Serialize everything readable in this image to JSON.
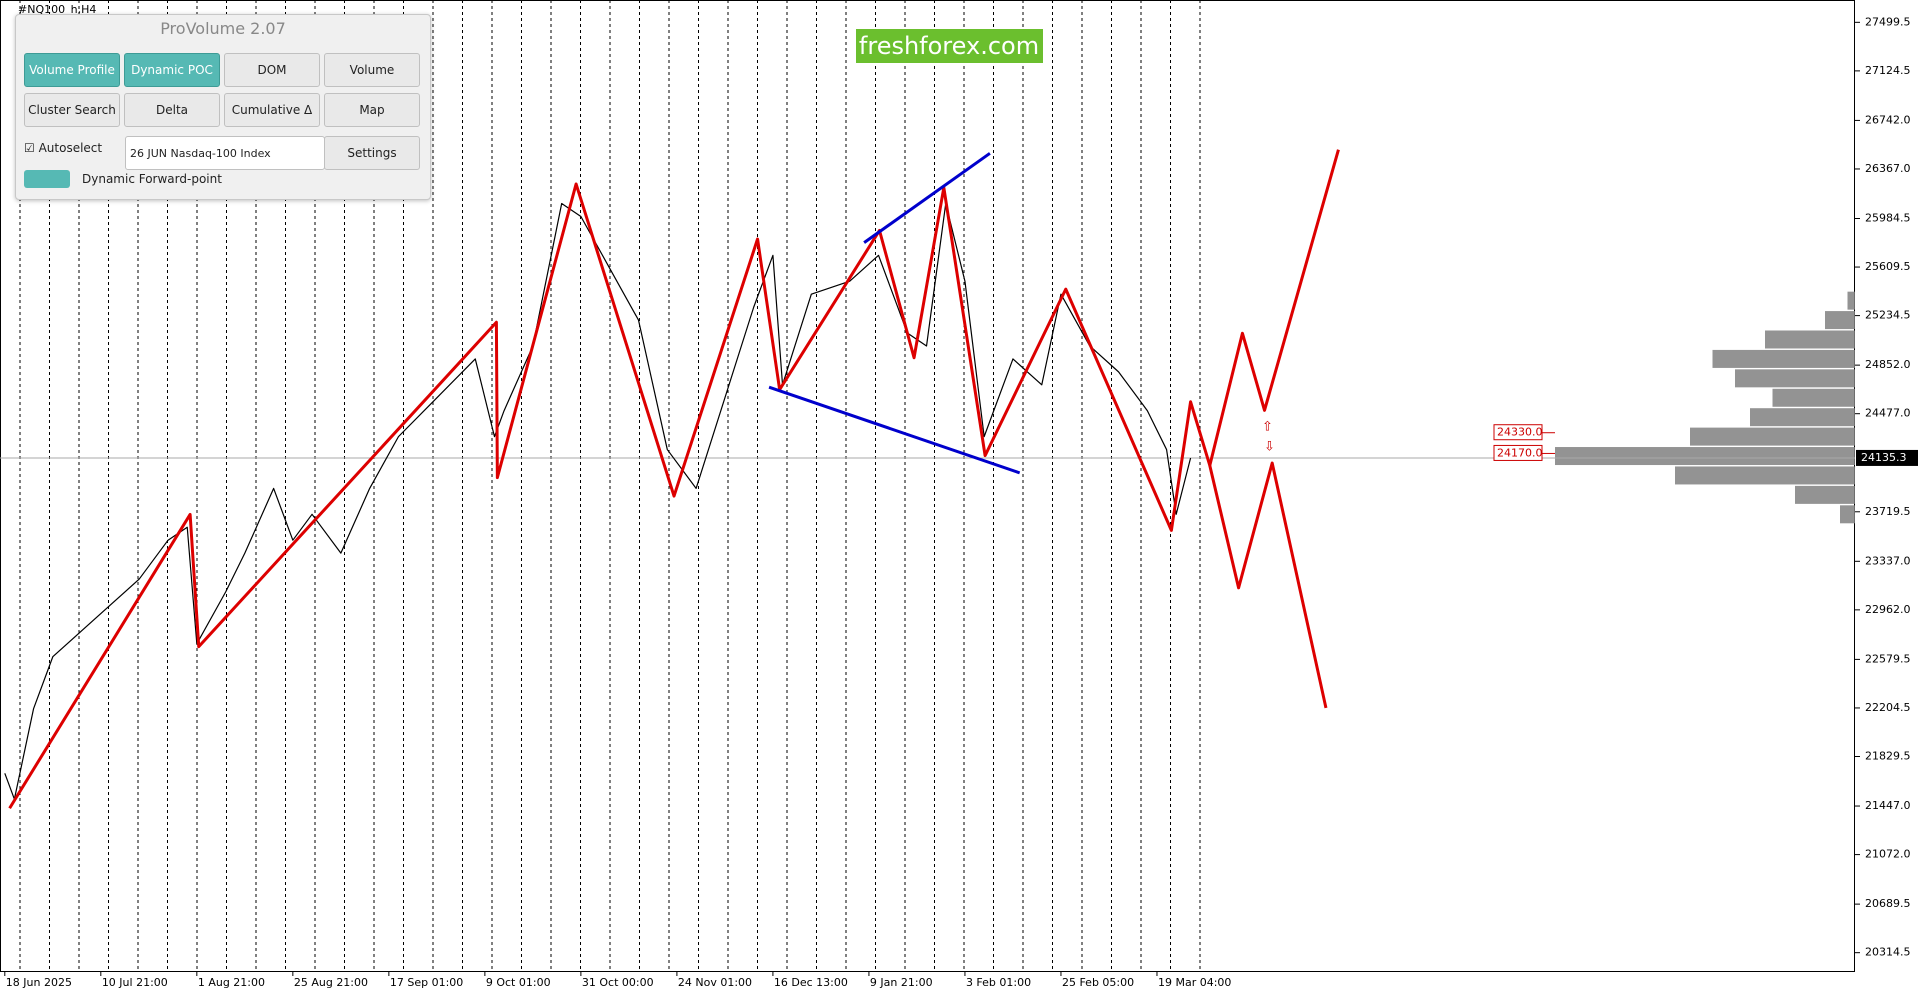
{
  "panel": {
    "title": "ProVolume 2.07",
    "buttons": [
      "Volume Profile",
      "Dynamic POC",
      "DOM",
      "Volume",
      "Cluster Search",
      "Delta",
      "Cumulative Δ",
      "Map"
    ],
    "autoselect": "Autoselect",
    "instrument": "26 JUN Nasdaq-100 Index",
    "settings": "Settings",
    "forward_point": "Dynamic Forward-point"
  },
  "chart_data": {
    "type": "line",
    "symbol": "#NQ100_h,H4",
    "watermark": "freshforex.com",
    "categories": [
      "18 Jun 2025",
      "10 Jul 21:00",
      "1 Aug 21:00",
      "25 Aug 21:00",
      "17 Sep 01:00",
      "9 Oct 01:00",
      "31 Oct 00:00",
      "24 Nov 01:00",
      "16 Dec 13:00",
      "9 Jan 21:00",
      "3 Feb 01:00",
      "25 Feb 05:00",
      "19 Mar 04:00"
    ],
    "xlim": [
      -0.05,
      19.27
    ],
    "ylim": [
      20173,
      27641
    ],
    "yticks": [
      27499.5,
      27124.5,
      {
        "value": 26742,
        "label": "26742.0"
      },
      {
        "value": 26367,
        "label": "26367.0"
      },
      25984.5,
      25609.5,
      25234.5,
      {
        "value": 24852,
        "label": "24852.0"
      },
      {
        "value": 24477,
        "label": "24477.0"
      },
      23719.5,
      {
        "value": 23337,
        "label": "23337.0"
      },
      {
        "value": 22962,
        "label": "22962.0"
      },
      22579.5,
      22204.5,
      21829.5,
      {
        "value": 21447,
        "label": "21447.0"
      },
      {
        "value": 21072,
        "label": "21072.0"
      },
      20689.5,
      20314.5
    ],
    "current_price": 24135.3,
    "levels": [
      {
        "value": 24330,
        "label": "24330.0"
      },
      {
        "value": 24170,
        "label": "24170.0"
      }
    ],
    "lines": [
      {
        "color": "#000000",
        "width": 1.2,
        "x": [
          0,
          0.1,
          0.3,
          0.5,
          0.8,
          1.1,
          1.4,
          1.7,
          1.9,
          2.0,
          2.3,
          2.5,
          2.8,
          3.0,
          3.2,
          3.5,
          3.8,
          4.1,
          4.5,
          4.9,
          5.1,
          5.2,
          5.5,
          5.8,
          6.0,
          6.3,
          6.6,
          6.9,
          7.2,
          7.5,
          7.8,
          8.0,
          8.1,
          8.4,
          8.8,
          9.1,
          9.4,
          9.6,
          9.8,
          10.0,
          10.2,
          10.5,
          10.8,
          11.0,
          11.3,
          11.6,
          11.9,
          12.1,
          12.2,
          12.35
        ],
        "values": [
          21700,
          21500,
          22200,
          22600,
          22800,
          23000,
          23200,
          23500,
          23600,
          22700,
          23100,
          23400,
          23900,
          23500,
          23700,
          23400,
          23900,
          24300,
          24600,
          24900,
          24300,
          24500,
          25000,
          26100,
          26000,
          25600,
          25200,
          24200,
          23900,
          24600,
          25300,
          25700,
          24700,
          25400,
          25500,
          25700,
          25100,
          25000,
          26100,
          25500,
          24300,
          24900,
          24700,
          25400,
          25000,
          24800,
          24500,
          24200,
          23700,
          24135
        ]
      },
      {
        "color": "#dd0000",
        "width": 3,
        "x": [
          0.05,
          1.93,
          2.02,
          5.12,
          5.13,
          5.95,
          6.97,
          7.84,
          8.07,
          9.11,
          9.47,
          9.78,
          10.21,
          11.05,
          12.15,
          12.35,
          12.55,
          12.89,
          13.12,
          13.89
        ],
        "values": [
          21430,
          23699,
          22678,
          25183,
          23983,
          26251,
          23841,
          25826,
          24663,
          25892,
          24909,
          26223,
          24153,
          25439,
          23576,
          24569,
          24077,
          25098,
          24503,
          26516
        ]
      },
      {
        "color": "#dd0000",
        "width": 3,
        "x": [
          12.55,
          12.85,
          13.2,
          13.76
        ],
        "values": [
          24077,
          23132,
          24096,
          22205
        ]
      },
      {
        "color": "#0000cc",
        "width": 3,
        "x": [
          8.95,
          10.26
        ],
        "values": [
          25798,
          26488
        ]
      },
      {
        "color": "#0000cc",
        "width": 3,
        "x": [
          7.96,
          10.57
        ],
        "values": [
          24682,
          24020
        ]
      }
    ],
    "volume_profile": {
      "color": "#808080",
      "prices": [
        25350,
        25200,
        25050,
        24900,
        24750,
        24600,
        24450,
        24300,
        24150,
        24000,
        23850,
        23700
      ],
      "values": [
        5,
        20,
        60,
        95,
        80,
        55,
        70,
        110,
        200,
        120,
        40,
        10
      ]
    }
  }
}
